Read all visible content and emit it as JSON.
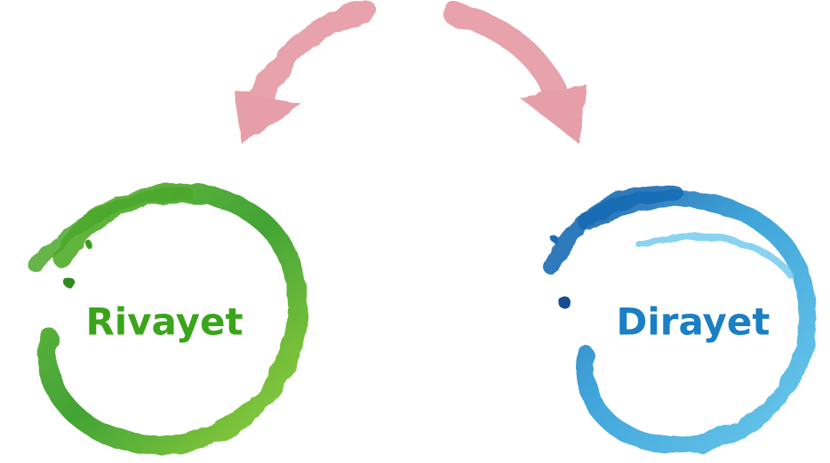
{
  "nodes": [
    {
      "label": "Rivayet"
    },
    {
      "label": "Dirayet"
    }
  ]
}
